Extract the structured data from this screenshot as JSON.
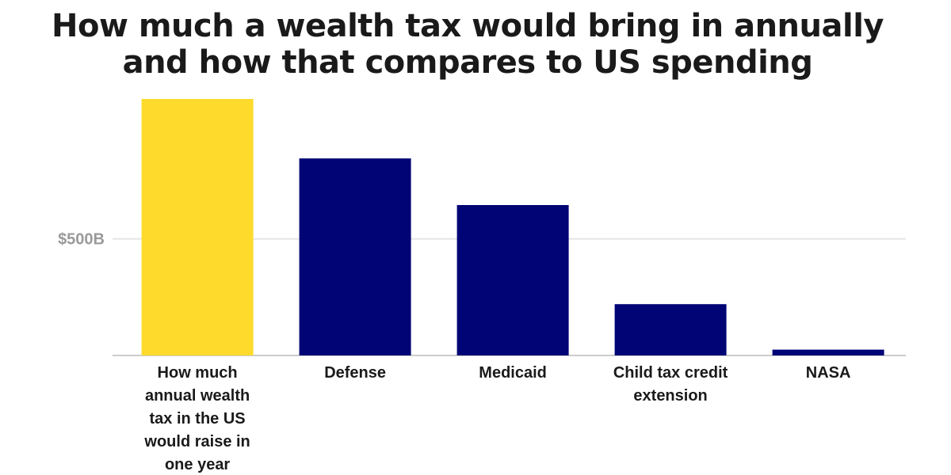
{
  "title": {
    "line1": "How much a wealth tax would bring in annually",
    "line2": "and how that compares to US spending"
  },
  "colors": {
    "highlight": "#FDDA2B",
    "bar": "#000475",
    "grid": "#e6e6e6",
    "axis": "#cccccc"
  },
  "chart_data": {
    "type": "bar",
    "title": "How much a wealth tax would bring in annually and how that compares to US spending",
    "categories": [
      [
        "How much",
        "annual wealth",
        "tax in the US",
        "would raise in",
        "one year"
      ],
      [
        "Defense"
      ],
      [
        "Medicaid"
      ],
      [
        "Child tax credit",
        "extension"
      ],
      [
        "NASA"
      ]
    ],
    "values": [
      1100,
      845,
      645,
      220,
      25
    ],
    "highlight_index": 0,
    "yticks": [
      {
        "value": 500,
        "label": "$500B"
      }
    ],
    "ylim": [
      0,
      1100
    ],
    "grid": true
  }
}
